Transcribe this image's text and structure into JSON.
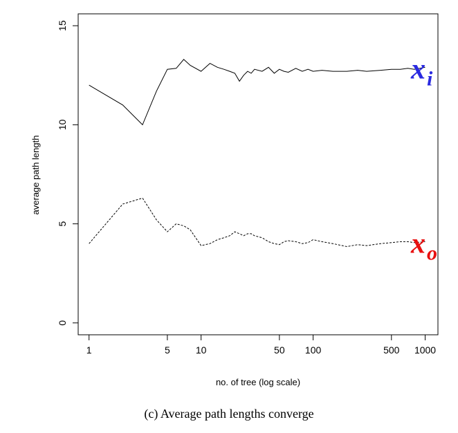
{
  "caption": "(c) Average path lengths converge",
  "chart_data": {
    "type": "line",
    "xlabel": "no. of tree (log scale)",
    "ylabel": "average path length",
    "xscale": "log",
    "xlim": [
      0.8,
      1300
    ],
    "ylim": [
      -0.6,
      15.6
    ],
    "x_ticks": [
      1,
      5,
      10,
      50,
      100,
      500,
      1000
    ],
    "y_ticks": [
      0,
      5,
      10,
      15
    ],
    "grid": false,
    "series": [
      {
        "name": "x_i",
        "label_main": "x",
        "label_sub": "i",
        "line_style": "solid",
        "label_color": "#2a2ae0",
        "x": [
          1,
          2,
          3,
          4,
          5,
          6,
          7,
          8,
          10,
          12,
          14,
          16,
          18,
          20,
          22,
          24,
          26,
          28,
          30,
          35,
          40,
          45,
          50,
          55,
          60,
          70,
          80,
          90,
          100,
          120,
          150,
          200,
          250,
          300,
          400,
          500,
          600,
          700,
          800,
          1000
        ],
        "y": [
          12.0,
          11.0,
          10.0,
          11.7,
          12.8,
          12.85,
          13.3,
          13.0,
          12.7,
          13.1,
          12.9,
          12.8,
          12.7,
          12.6,
          12.2,
          12.5,
          12.7,
          12.6,
          12.8,
          12.7,
          12.9,
          12.6,
          12.8,
          12.7,
          12.65,
          12.85,
          12.7,
          12.8,
          12.7,
          12.75,
          12.7,
          12.7,
          12.75,
          12.7,
          12.75,
          12.8,
          12.8,
          12.85,
          12.8,
          12.9
        ]
      },
      {
        "name": "x_o",
        "label_main": "x",
        "label_sub": "o",
        "line_style": "dashed",
        "label_color": "#e81010",
        "x": [
          1,
          2,
          3,
          4,
          5,
          6,
          7,
          8,
          10,
          12,
          14,
          16,
          18,
          20,
          22,
          24,
          26,
          28,
          30,
          35,
          40,
          45,
          50,
          55,
          60,
          70,
          80,
          90,
          100,
          120,
          150,
          200,
          250,
          300,
          400,
          500,
          600,
          700,
          800,
          1000
        ],
        "y": [
          4.0,
          6.0,
          6.3,
          5.2,
          4.6,
          5.0,
          4.9,
          4.7,
          3.9,
          4.0,
          4.2,
          4.3,
          4.4,
          4.6,
          4.5,
          4.4,
          4.5,
          4.5,
          4.4,
          4.3,
          4.1,
          4.0,
          3.95,
          4.1,
          4.15,
          4.1,
          4.0,
          4.05,
          4.2,
          4.1,
          4.0,
          3.85,
          3.95,
          3.9,
          4.0,
          4.05,
          4.1,
          4.1,
          4.05,
          4.1
        ]
      }
    ]
  }
}
